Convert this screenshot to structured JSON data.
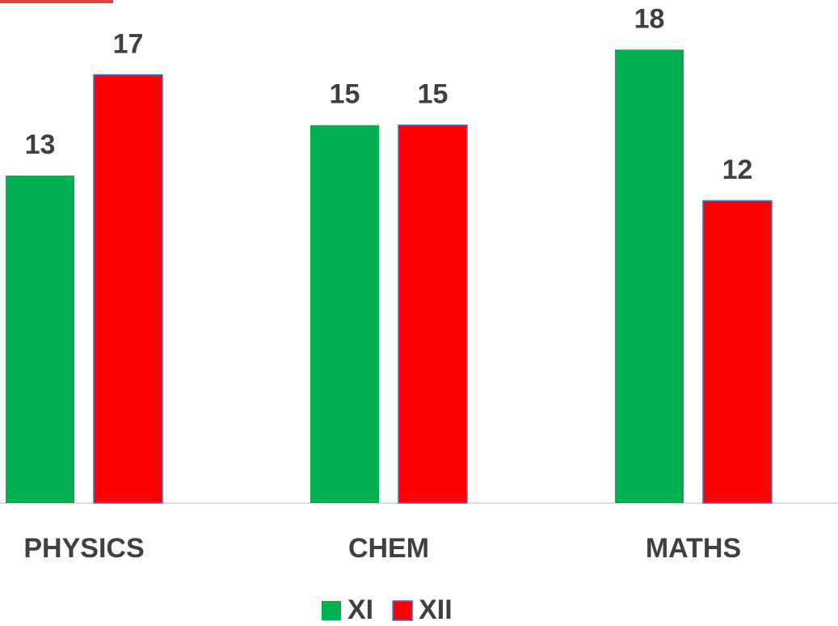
{
  "chart_data": {
    "type": "bar",
    "categories": [
      "PHYSICS",
      "CHEM",
      "MATHS"
    ],
    "series": [
      {
        "name": "XI",
        "color": "#00b050",
        "values": [
          13,
          15,
          18
        ]
      },
      {
        "name": "XII",
        "color": "#ff0000",
        "values": [
          17,
          15,
          12
        ]
      }
    ],
    "ylim": [
      0,
      20
    ],
    "grid": false,
    "legend": "bottom"
  }
}
